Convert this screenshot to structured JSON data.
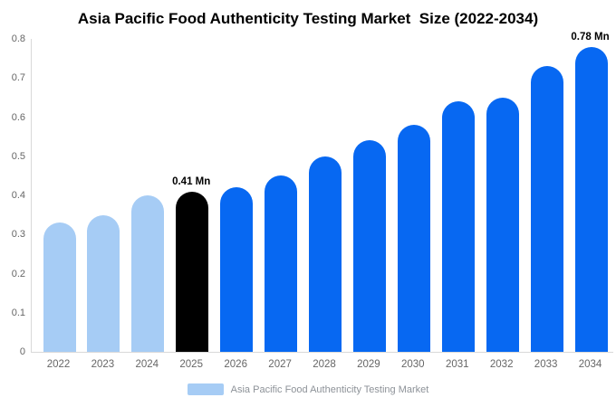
{
  "title": "Asia Pacific Food Authenticity Testing Market  Size (2022-2034)",
  "legend": {
    "label": "Asia Pacific Food Authenticity Testing Market"
  },
  "colors": {
    "bar_light": "#a6ccf5",
    "bar_highlight": "#000000",
    "bar_blue": "#0768f2",
    "axis_line": "#d9d9d9",
    "tick_label": "#666666",
    "annotation": "#000000",
    "legend_label": "#8d9298",
    "background": "#ffffff"
  },
  "chart_data": {
    "type": "bar",
    "title": "Asia Pacific Food Authenticity Testing Market  Size (2022-2034)",
    "categories": [
      "2022",
      "2023",
      "2024",
      "2025",
      "2026",
      "2027",
      "2028",
      "2029",
      "2030",
      "2031",
      "2032",
      "2033",
      "2034"
    ],
    "series": [
      {
        "name": "Asia Pacific Food Authenticity Testing Market",
        "values": [
          0.33,
          0.35,
          0.4,
          0.41,
          0.42,
          0.45,
          0.5,
          0.54,
          0.58,
          0.64,
          0.65,
          0.73,
          0.78
        ]
      }
    ],
    "unit": "Mn",
    "ylabel": "",
    "xlabel": "",
    "ylim": [
      0,
      0.8
    ],
    "ytick_step": 0.1,
    "ytick_labels": [
      "0",
      "0.1",
      "0.2",
      "0.3",
      "0.4",
      "0.5",
      "0.6",
      "0.7",
      "0.8"
    ],
    "grid": false,
    "legend_position": "bottom",
    "bar_color_keys": [
      "light",
      "light",
      "light",
      "highlight",
      "blue",
      "blue",
      "blue",
      "blue",
      "blue",
      "blue",
      "blue",
      "blue",
      "blue"
    ],
    "annotations": [
      {
        "category": "2025",
        "text": "0.41 Mn"
      },
      {
        "category": "2034",
        "text": "0.78 Mn"
      }
    ]
  }
}
